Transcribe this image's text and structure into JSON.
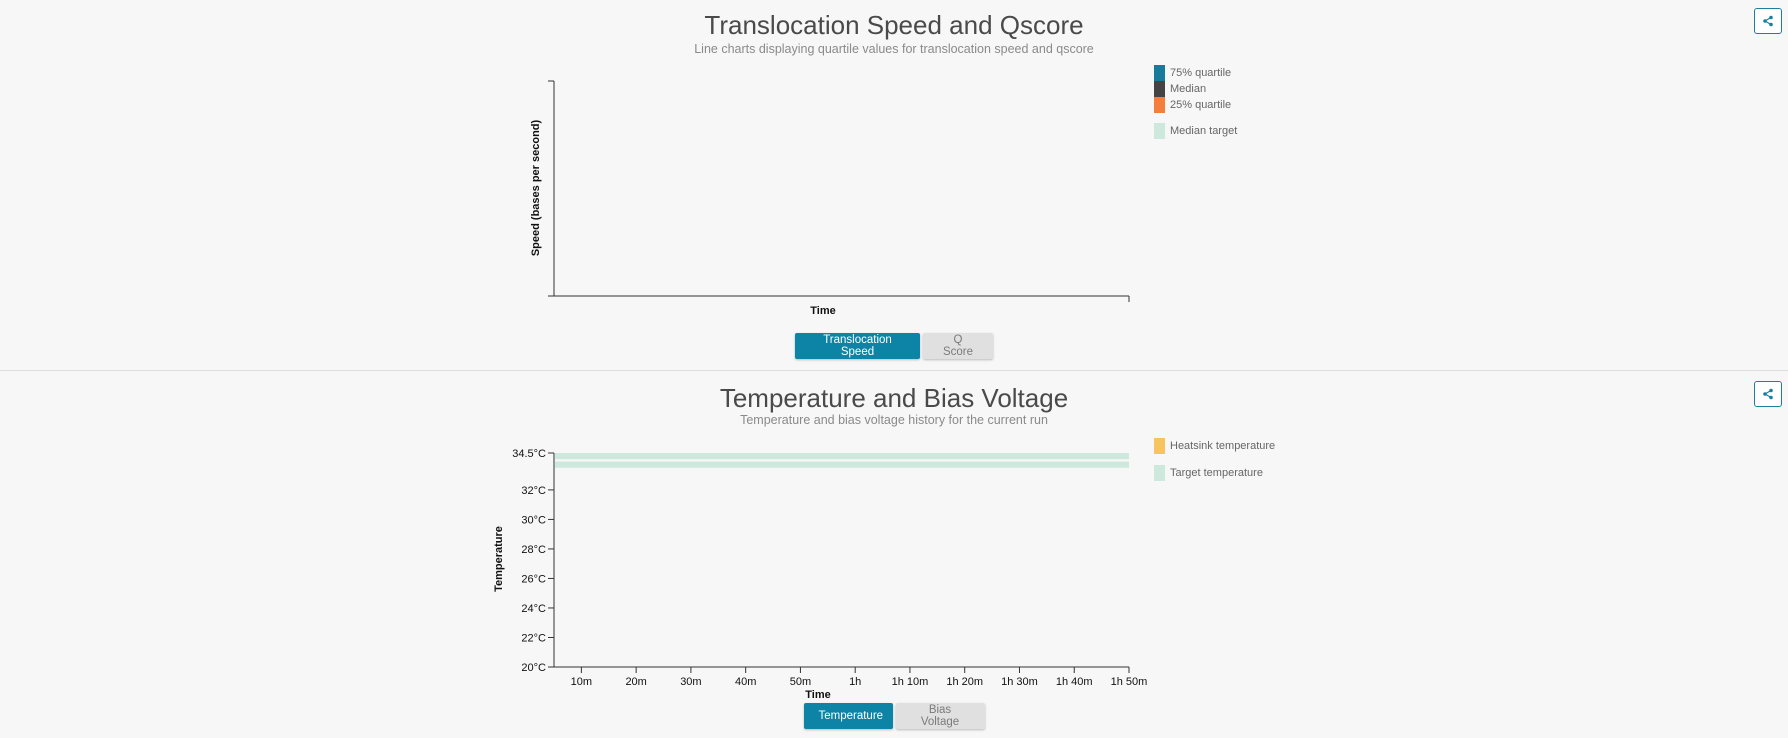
{
  "speed_panel": {
    "title": "Translocation Speed and Qscore",
    "subtitle": "Line charts displaying quartile values for translocation speed and qscore",
    "buttons": {
      "speed": "Translocation Speed",
      "qscore": "Q Score"
    },
    "active_button": "speed",
    "legend": [
      {
        "label": "75% quartile",
        "color": "#1a7a9c"
      },
      {
        "label": "Median",
        "color": "#444444"
      },
      {
        "label": "25% quartile",
        "color": "#f47f3c"
      },
      {
        "label": "Median target",
        "color": "#cde9dd"
      }
    ],
    "share_icon": "share-icon"
  },
  "temp_panel": {
    "title": "Temperature and Bias Voltage",
    "subtitle": "Temperature and bias voltage history for the current run",
    "buttons": {
      "temperature": "Temperature",
      "bias": "Bias Voltage"
    },
    "active_button": "temperature",
    "legend": [
      {
        "label": "Heatsink temperature",
        "color": "#f6c560"
      },
      {
        "label": "Target temperature",
        "color": "#cde9dd"
      }
    ],
    "share_icon": "share-icon"
  },
  "chart_data": [
    {
      "type": "line",
      "title": "Translocation Speed and Qscore",
      "xlabel": "Time",
      "ylabel": "Speed (bases per second)",
      "series": [
        {
          "name": "75% quartile",
          "values": []
        },
        {
          "name": "Median",
          "values": []
        },
        {
          "name": "25% quartile",
          "values": []
        }
      ],
      "bands": [
        {
          "name": "Median target"
        }
      ],
      "grid": false,
      "legend_position": "top-right"
    },
    {
      "type": "line",
      "title": "Temperature and Bias Voltage",
      "xlabel": "Time",
      "ylabel": "Temperature",
      "x_tick_labels": [
        "10m",
        "20m",
        "30m",
        "40m",
        "50m",
        "1h",
        "1h 10m",
        "1h 20m",
        "1h 30m",
        "1h 40m",
        "1h 50m"
      ],
      "x_ticks_minutes": [
        10,
        20,
        30,
        40,
        50,
        60,
        70,
        80,
        90,
        100,
        110
      ],
      "xlim_minutes": [
        5,
        110
      ],
      "y_tick_labels": [
        "20°C",
        "22°C",
        "24°C",
        "26°C",
        "28°C",
        "30°C",
        "32°C",
        "34.5°C"
      ],
      "y_ticks": [
        20,
        22,
        24,
        26,
        28,
        30,
        32,
        34.5
      ],
      "ylim": [
        20,
        34.5
      ],
      "series": [
        {
          "name": "Heatsink temperature",
          "values": []
        }
      ],
      "bands": [
        {
          "name": "Target temperature",
          "y_range": [
            33.5,
            34.5
          ]
        }
      ],
      "grid": false,
      "legend_position": "top-right"
    }
  ]
}
